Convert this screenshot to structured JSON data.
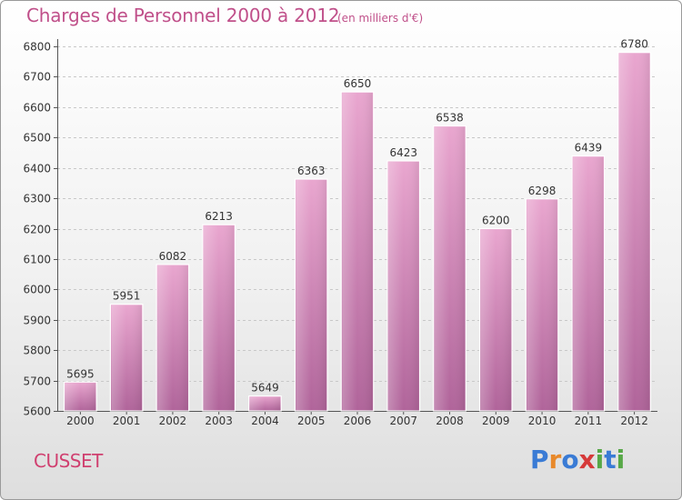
{
  "header": {
    "title": "Charges de Personnel 2000 à 2012",
    "subtitle": "(en milliers d'€)"
  },
  "footer": {
    "city": "CUSSET",
    "logo_text": "Proxiti"
  },
  "colors": {
    "title": "#c0508a",
    "city": "#d04070",
    "bar_top": "#e9a6cf",
    "bar_bottom": "#b0649a",
    "logo_letters": [
      "#3a7bd5",
      "#e8892b",
      "#3a7bd5",
      "#d63a3a",
      "#57a847",
      "#3a7bd5",
      "#57a847"
    ]
  },
  "chart_data": {
    "type": "bar",
    "categories": [
      "2000",
      "2001",
      "2002",
      "2003",
      "2004",
      "2005",
      "2006",
      "2007",
      "2008",
      "2009",
      "2010",
      "2011",
      "2012"
    ],
    "values": [
      5695,
      5951,
      6082,
      6213,
      5649,
      6363,
      6650,
      6423,
      6538,
      6200,
      6298,
      6439,
      6780
    ],
    "title": "Charges de Personnel 2000 à 2012",
    "xlabel": "",
    "ylabel": "",
    "ylim": [
      5600,
      6800
    ],
    "yticks": [
      5600,
      5700,
      5800,
      5900,
      6000,
      6100,
      6200,
      6300,
      6400,
      6500,
      6600,
      6700,
      6800
    ],
    "grid": true,
    "legend": "none"
  }
}
